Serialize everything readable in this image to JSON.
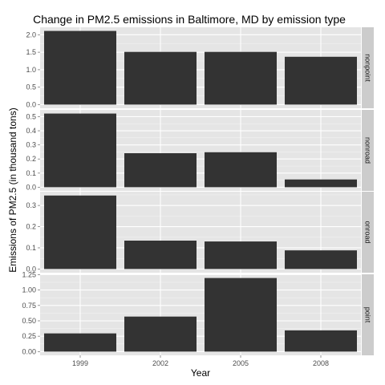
{
  "chart_data": {
    "type": "bar",
    "title": "Change in PM2.5 emissions in Baltimore, MD by emission type",
    "xlabel": "Year",
    "ylabel": "Emissions of PM2.5 (in thousand tons)",
    "categories": [
      "1999",
      "2002",
      "2005",
      "2008"
    ],
    "grid": true,
    "bar_color": "#333333",
    "panel_background": "#e5e5e5",
    "strip_background": "#cccccc",
    "facets": [
      {
        "name": "nonpoint",
        "values": [
          2.11,
          1.51,
          1.51,
          1.37
        ],
        "ylim": [
          -0.105,
          2.215
        ],
        "ticks": [
          0.0,
          0.5,
          1.0,
          1.5,
          2.0
        ],
        "tick_labels": [
          "0.0",
          "0.5",
          "1.0",
          "1.5",
          "2.0"
        ]
      },
      {
        "name": "nonroad",
        "values": [
          0.522,
          0.241,
          0.248,
          0.055
        ],
        "ylim": [
          -0.026,
          0.548
        ],
        "ticks": [
          0.0,
          0.1,
          0.2,
          0.3,
          0.4,
          0.5
        ],
        "tick_labels": [
          "0.0",
          "0.1",
          "0.2",
          "0.3",
          "0.4",
          "0.5"
        ]
      },
      {
        "name": "onroad",
        "values": [
          0.347,
          0.134,
          0.13,
          0.088
        ],
        "ylim": [
          -0.0175,
          0.365
        ],
        "ticks": [
          0.0,
          0.1,
          0.2,
          0.3
        ],
        "tick_labels": [
          "0.0",
          "0.1",
          "0.2",
          "0.3"
        ]
      },
      {
        "name": "point",
        "values": [
          0.296,
          0.569,
          1.195,
          0.345
        ],
        "ylim": [
          -0.06,
          1.255
        ],
        "ticks": [
          0.0,
          0.25,
          0.5,
          0.75,
          1.0,
          1.25
        ],
        "tick_labels": [
          "0.00",
          "0.25",
          "0.50",
          "0.75",
          "1.00",
          "1.25"
        ]
      }
    ]
  }
}
